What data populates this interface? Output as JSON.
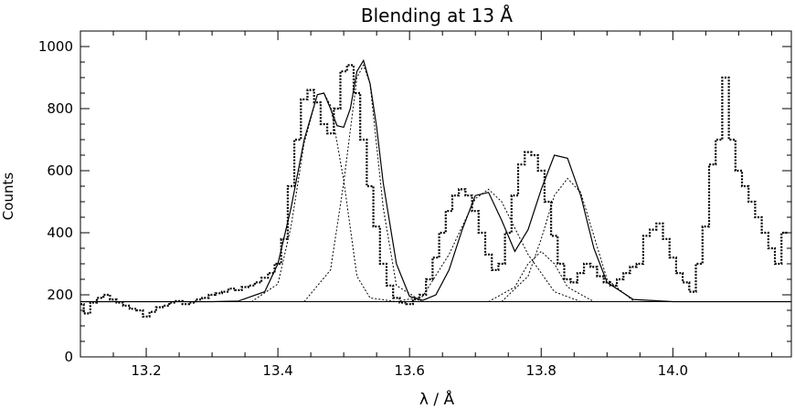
{
  "chart_data": {
    "type": "line",
    "title": "Blending at 13 Å",
    "xlabel": "λ / Å",
    "ylabel": "Counts",
    "xlim": [
      13.1,
      14.18
    ],
    "ylim": [
      0,
      1050
    ],
    "x_ticks": [
      13.2,
      13.4,
      13.6,
      13.8,
      14.0
    ],
    "x_tick_labels": [
      "13.2",
      "13.4",
      "13.6",
      "13.8",
      "14.0"
    ],
    "y_ticks": [
      0,
      200,
      400,
      600,
      800,
      1000
    ],
    "y_tick_labels": [
      "0",
      "200",
      "400",
      "600",
      "800",
      "1000"
    ],
    "grid": false,
    "legend": "none",
    "baseline": 178,
    "series": [
      {
        "style": "histogram-dotted",
        "x": [
          13.1,
          13.11,
          13.12,
          13.13,
          13.14,
          13.15,
          13.16,
          13.17,
          13.18,
          13.19,
          13.2,
          13.21,
          13.22,
          13.23,
          13.24,
          13.25,
          13.26,
          13.27,
          13.28,
          13.29,
          13.3,
          13.31,
          13.32,
          13.33,
          13.34,
          13.35,
          13.36,
          13.37,
          13.38,
          13.39,
          13.4,
          13.41,
          13.42,
          13.43,
          13.44,
          13.45,
          13.46,
          13.47,
          13.48,
          13.49,
          13.5,
          13.51,
          13.52,
          13.53,
          13.54,
          13.55,
          13.56,
          13.57,
          13.58,
          13.59,
          13.6,
          13.61,
          13.62,
          13.63,
          13.64,
          13.65,
          13.66,
          13.67,
          13.68,
          13.69,
          13.7,
          13.71,
          13.72,
          13.73,
          13.74,
          13.75,
          13.76,
          13.77,
          13.78,
          13.79,
          13.8,
          13.81,
          13.82,
          13.83,
          13.84,
          13.85,
          13.86,
          13.87,
          13.88,
          13.89,
          13.9,
          13.91,
          13.92,
          13.93,
          13.94,
          13.95,
          13.96,
          13.97,
          13.98,
          13.99,
          14.0,
          14.01,
          14.02,
          14.03,
          14.04,
          14.05,
          14.06,
          14.07,
          14.08,
          14.09,
          14.1,
          14.11,
          14.12,
          14.13,
          14.14,
          14.15,
          14.16,
          14.17
        ],
        "values": [
          170,
          140,
          175,
          190,
          200,
          185,
          175,
          165,
          155,
          150,
          130,
          145,
          160,
          165,
          175,
          180,
          170,
          175,
          185,
          190,
          200,
          205,
          210,
          220,
          215,
          225,
          230,
          240,
          255,
          270,
          300,
          380,
          550,
          700,
          830,
          860,
          820,
          750,
          720,
          800,
          920,
          940,
          850,
          700,
          550,
          420,
          300,
          230,
          190,
          175,
          170,
          185,
          200,
          250,
          320,
          400,
          470,
          520,
          540,
          520,
          470,
          400,
          330,
          280,
          300,
          400,
          520,
          620,
          660,
          650,
          600,
          500,
          390,
          300,
          250,
          240,
          270,
          300,
          290,
          260,
          240,
          230,
          250,
          270,
          290,
          300,
          390,
          410,
          430,
          380,
          320,
          270,
          240,
          210,
          300,
          420,
          620,
          700,
          900,
          700,
          600,
          550,
          500,
          450,
          400,
          350,
          300,
          400
        ]
      },
      {
        "style": "solid-model",
        "x": [
          13.1,
          13.14,
          13.18,
          13.22,
          13.26,
          13.3,
          13.34,
          13.38,
          13.4,
          13.42,
          13.44,
          13.46,
          13.47,
          13.48,
          13.49,
          13.5,
          13.51,
          13.52,
          13.53,
          13.54,
          13.55,
          13.56,
          13.58,
          13.6,
          13.62,
          13.64,
          13.66,
          13.68,
          13.7,
          13.72,
          13.74,
          13.76,
          13.78,
          13.8,
          13.82,
          13.84,
          13.86,
          13.88,
          13.9,
          13.94,
          14.0,
          14.1,
          14.18
        ],
        "values": [
          178,
          178,
          178,
          178,
          178,
          178,
          180,
          210,
          300,
          480,
          700,
          845,
          850,
          800,
          745,
          740,
          800,
          920,
          955,
          880,
          740,
          560,
          300,
          195,
          182,
          200,
          280,
          410,
          520,
          530,
          440,
          340,
          410,
          540,
          650,
          640,
          520,
          350,
          240,
          185,
          178,
          178,
          178
        ]
      },
      {
        "style": "dotted-component",
        "x": [
          13.36,
          13.4,
          13.42,
          13.44,
          13.46,
          13.47,
          13.48,
          13.5,
          13.52,
          13.54,
          13.58
        ],
        "values": [
          178,
          235,
          420,
          690,
          845,
          850,
          810,
          570,
          260,
          190,
          178
        ]
      },
      {
        "style": "dotted-component",
        "x": [
          13.44,
          13.48,
          13.5,
          13.52,
          13.53,
          13.54,
          13.56,
          13.58,
          13.62
        ],
        "values": [
          178,
          280,
          560,
          900,
          940,
          880,
          480,
          230,
          178
        ]
      },
      {
        "style": "dotted-component",
        "x": [
          13.58,
          13.62,
          13.66,
          13.7,
          13.72,
          13.74,
          13.78,
          13.82,
          13.86
        ],
        "values": [
          178,
          195,
          330,
          510,
          540,
          500,
          330,
          210,
          178
        ]
      },
      {
        "style": "dotted-component",
        "x": [
          13.72,
          13.76,
          13.78,
          13.8,
          13.82,
          13.84,
          13.88
        ],
        "values": [
          178,
          225,
          300,
          340,
          300,
          225,
          178
        ]
      },
      {
        "style": "dotted-component",
        "x": [
          13.74,
          13.78,
          13.8,
          13.82,
          13.84,
          13.86,
          13.88,
          13.9,
          13.94
        ],
        "values": [
          178,
          260,
          380,
          520,
          575,
          530,
          390,
          250,
          180
        ]
      }
    ]
  }
}
